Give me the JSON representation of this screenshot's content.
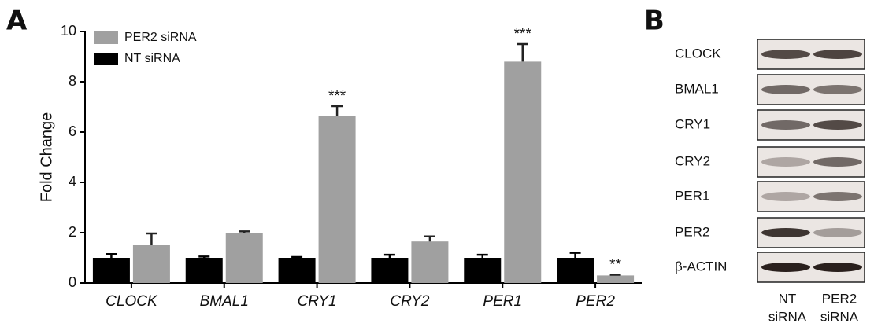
{
  "panel_labels": [
    "A",
    "B"
  ],
  "chart_data": {
    "type": "bar",
    "ylabel": "Fold Change",
    "categories": [
      "CLOCK",
      "BMAL1",
      "CRY1",
      "CRY2",
      "PER1",
      "PER2"
    ],
    "series": [
      {
        "name": "NT siRNA",
        "color": "#000000",
        "values": [
          1.0,
          1.0,
          1.0,
          1.0,
          1.0,
          1.0
        ],
        "errors": [
          0.15,
          0.05,
          0.03,
          0.12,
          0.12,
          0.2
        ]
      },
      {
        "name": "PER2 siRNA",
        "color": "#a0a0a0",
        "values": [
          1.5,
          1.97,
          6.65,
          1.65,
          8.8,
          0.3
        ],
        "errors": [
          0.47,
          0.08,
          0.38,
          0.2,
          0.7,
          0.03
        ],
        "significance": [
          null,
          null,
          "***",
          null,
          "***",
          "**"
        ]
      }
    ],
    "ylim": [
      0,
      10
    ],
    "yticks": [
      0,
      2,
      4,
      6,
      8,
      10
    ],
    "grid": false
  },
  "blot": {
    "rows": [
      "CLOCK",
      "BMAL1",
      "CRY1",
      "CRY2",
      "PER1",
      "PER2",
      "β-ACTIN"
    ],
    "lanes": [
      [
        "NT",
        "siRNA"
      ],
      [
        "PER2",
        "siRNA"
      ]
    ]
  }
}
